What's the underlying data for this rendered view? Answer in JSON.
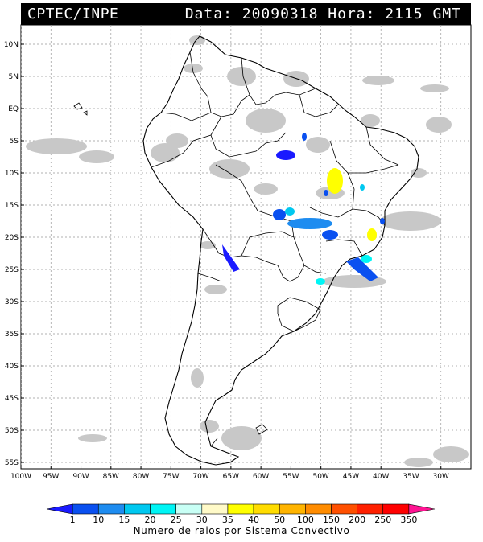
{
  "header": {
    "source": "CPTEC/INPE",
    "datetime": "Data: 20090318 Hora: 2115 GMT"
  },
  "map": {
    "lon_range": [
      -100,
      -25
    ],
    "lat_range": [
      -56,
      13
    ],
    "lat_ticks": [
      "10N",
      "5N",
      "EQ",
      "5S",
      "10S",
      "15S",
      "20S",
      "25S",
      "30S",
      "35S",
      "40S",
      "45S",
      "50S",
      "55S"
    ],
    "lon_ticks": [
      "100W",
      "95W",
      "90W",
      "85W",
      "80W",
      "75W",
      "70W",
      "65W",
      "60W",
      "55W",
      "50W",
      "45W",
      "40W",
      "35W",
      "30W"
    ],
    "colors": {
      "land_outline": "#000000",
      "clouds": "#c8c8c8",
      "grid": "#888888"
    }
  },
  "legend": {
    "labels": [
      "1",
      "10",
      "15",
      "20",
      "25",
      "30",
      "35",
      "40",
      "50",
      "100",
      "150",
      "200",
      "250",
      "350"
    ],
    "colors": [
      "#1a1aff",
      "#0a50f0",
      "#1e8cf0",
      "#00c8f0",
      "#00f5f5",
      "#c8fff5",
      "#fffac8",
      "#ffff00",
      "#ffdc00",
      "#ffb400",
      "#ff8c00",
      "#ff5000",
      "#ff2000",
      "#ff0000",
      "#ff1493"
    ],
    "title": "Numero de raios por Sistema Convectivo"
  }
}
